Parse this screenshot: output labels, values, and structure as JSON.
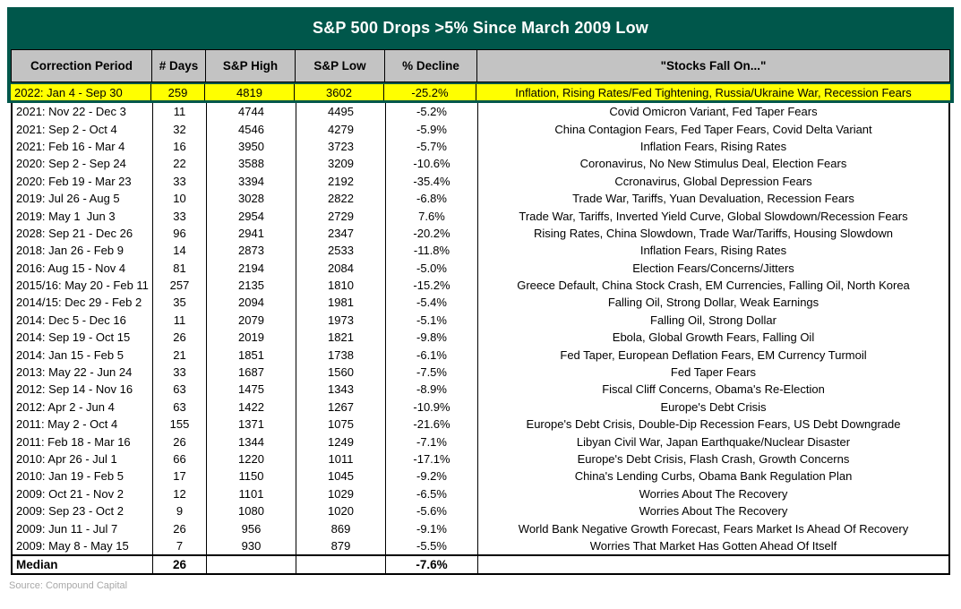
{
  "title": "S&P 500 Drops >5% Since March 2009 Low",
  "source_note": "Source: Compound Capital",
  "colors": {
    "accent_green": "#00574B",
    "header_gray": "#c3c3c3",
    "highlight_yellow": "#ffff00",
    "text": "#000000",
    "source_gray": "#a8a8a8"
  },
  "chart_data": {
    "type": "table",
    "title": "S&P 500 Drops >5% Since March 2009 Low",
    "columns": [
      "Correction Period",
      "# Days",
      "S&P High",
      "S&P Low",
      "% Decline",
      "\"Stocks Fall On...\""
    ],
    "highlight_row": {
      "period": "2022: Jan 4 - Sep 30",
      "days": "259",
      "high": "4819",
      "low": "3602",
      "decline": "-25.2%",
      "reason": "Inflation, Rising Rates/Fed Tightening, Russia/Ukraine War, Recession Fears"
    },
    "rows": [
      {
        "period": "2021: Nov 22 - Dec 3",
        "days": "11",
        "high": "4744",
        "low": "4495",
        "decline": "-5.2%",
        "reason": "Covid Omicron Variant, Fed Taper Fears"
      },
      {
        "period": "2021: Sep 2 - Oct 4",
        "days": "32",
        "high": "4546",
        "low": "4279",
        "decline": "-5.9%",
        "reason": "China Contagion Fears, Fed Taper Fears, Covid Delta Variant"
      },
      {
        "period": "2021: Feb 16 - Mar 4",
        "days": "16",
        "high": "3950",
        "low": "3723",
        "decline": "-5.7%",
        "reason": "Inflation Fears, Rising Rates"
      },
      {
        "period": "2020: Sep 2 - Sep 24",
        "days": "22",
        "high": "3588",
        "low": "3209",
        "decline": "-10.6%",
        "reason": "Coronavirus, No New Stimulus Deal, Election Fears"
      },
      {
        "period": "2020: Feb 19 - Mar 23",
        "days": "33",
        "high": "3394",
        "low": "2192",
        "decline": "-35.4%",
        "reason": "Ccronavirus, Global Depression Fears"
      },
      {
        "period": "2019: Jul 26 - Aug 5",
        "days": "10",
        "high": "3028",
        "low": "2822",
        "decline": "-6.8%",
        "reason": "Trade War, Tariffs, Yuan Devaluation, Recession Fears"
      },
      {
        "period": "2019: May 1  Jun 3",
        "days": "33",
        "high": "2954",
        "low": "2729",
        "decline": "7.6%",
        "reason": "Trade War, Tariffs, Inverted Yield Curve, Global Slowdown/Recession Fears"
      },
      {
        "period": "2028: Sep 21 - Dec 26",
        "days": "96",
        "high": "2941",
        "low": "2347",
        "decline": "-20.2%",
        "reason": "Rising Rates, China Slowdown, Trade War/Tariffs, Housing Slowdown"
      },
      {
        "period": "2018: Jan 26 - Feb 9",
        "days": "14",
        "high": "2873",
        "low": "2533",
        "decline": "-11.8%",
        "reason": "Inflation Fears, Rising Rates"
      },
      {
        "period": "2016: Aug 15 - Nov 4",
        "days": "81",
        "high": "2194",
        "low": "2084",
        "decline": "-5.0%",
        "reason": "Election Fears/Concerns/Jitters"
      },
      {
        "period": "2015/16: May 20 - Feb 11",
        "days": "257",
        "high": "2135",
        "low": "1810",
        "decline": "-15.2%",
        "reason": "Greece Default, China Stock Crash, EM Currencies, Falling Oil, North Korea"
      },
      {
        "period": "2014/15: Dec 29 - Feb 2",
        "days": "35",
        "high": "2094",
        "low": "1981",
        "decline": "-5.4%",
        "reason": "Falling Oil, Strong Dollar, Weak Earnings"
      },
      {
        "period": "2014: Dec 5 - Dec 16",
        "days": "11",
        "high": "2079",
        "low": "1973",
        "decline": "-5.1%",
        "reason": "Falling Oil, Strong Dollar"
      },
      {
        "period": "2014: Sep 19 - Oct 15",
        "days": "26",
        "high": "2019",
        "low": "1821",
        "decline": "-9.8%",
        "reason": "Ebola, Global Growth Fears, Falling Oil"
      },
      {
        "period": "2014: Jan 15 - Feb 5",
        "days": "21",
        "high": "1851",
        "low": "1738",
        "decline": "-6.1%",
        "reason": "Fed Taper, European Deflation Fears, EM Currency Turmoil"
      },
      {
        "period": "2013: May 22 - Jun 24",
        "days": "33",
        "high": "1687",
        "low": "1560",
        "decline": "-7.5%",
        "reason": "Fed Taper Fears"
      },
      {
        "period": "2012: Sep 14 - Nov 16",
        "days": "63",
        "high": "1475",
        "low": "1343",
        "decline": "-8.9%",
        "reason": "Fiscal Cliff Concerns, Obama's Re-Election"
      },
      {
        "period": "2012: Apr 2 - Jun 4",
        "days": "63",
        "high": "1422",
        "low": "1267",
        "decline": "-10.9%",
        "reason": "Europe's Debt Crisis"
      },
      {
        "period": "2011: May 2 - Oct 4",
        "days": "155",
        "high": "1371",
        "low": "1075",
        "decline": "-21.6%",
        "reason": "Europe's Debt Crisis, Double-Dip Recession Fears, US Debt Downgrade"
      },
      {
        "period": "2011: Feb 18 - Mar 16",
        "days": "26",
        "high": "1344",
        "low": "1249",
        "decline": "-7.1%",
        "reason": "Libyan Civil War, Japan Earthquake/Nuclear Disaster"
      },
      {
        "period": "2010: Apr 26 - Jul 1",
        "days": "66",
        "high": "1220",
        "low": "1011",
        "decline": "-17.1%",
        "reason": "Europe's Debt Crisis, Flash Crash, Growth Concerns"
      },
      {
        "period": "2010: Jan 19 - Feb 5",
        "days": "17",
        "high": "1150",
        "low": "1045",
        "decline": "-9.2%",
        "reason": "China's Lending Curbs, Obama Bank Regulation Plan"
      },
      {
        "period": "2009: Oct 21 - Nov 2",
        "days": "12",
        "high": "1101",
        "low": "1029",
        "decline": "-6.5%",
        "reason": "Worries About The Recovery"
      },
      {
        "period": "2009: Sep 23 - Oct 2",
        "days": "9",
        "high": "1080",
        "low": "1020",
        "decline": "-5.6%",
        "reason": "Worries About The Recovery"
      },
      {
        "period": "2009: Jun 11 - Jul 7",
        "days": "26",
        "high": "956",
        "low": "869",
        "decline": "-9.1%",
        "reason": "World Bank Negative Growth Forecast, Fears Market Is Ahead Of Recovery"
      },
      {
        "period": "2009: May 8 - May 15",
        "days": "7",
        "high": "930",
        "low": "879",
        "decline": "-5.5%",
        "reason": "Worries That Market Has Gotten Ahead Of Itself"
      }
    ],
    "median": {
      "label": "Median",
      "days": "26",
      "high": "",
      "low": "",
      "decline": "-7.6%",
      "reason": ""
    }
  }
}
